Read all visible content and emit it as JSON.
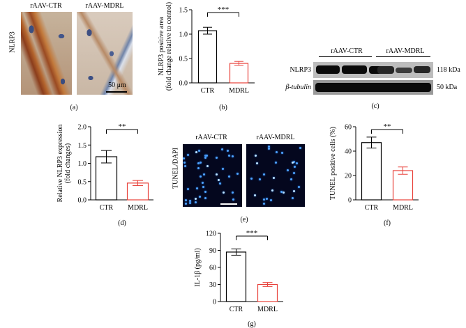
{
  "panel_a": {
    "label": "(a)",
    "row_label": "NLRP3",
    "titles": [
      "rAAV-CTR",
      "rAAV-MDRL"
    ],
    "scale": "50 μm"
  },
  "panel_c": {
    "label": "(c)",
    "groups": [
      "rAAV-CTR",
      "rAAV-MDRL"
    ],
    "rows": [
      {
        "name": "NLRP3",
        "kda": "118 kDa"
      },
      {
        "name": "β-tubulin",
        "kda": "50 kDa"
      }
    ]
  },
  "panel_e": {
    "label": "(e)",
    "row_label": "TUNEL/DAPI",
    "titles": [
      "rAAV-CTR",
      "rAAV-MDRL"
    ]
  },
  "chart_data": [
    {
      "id": "b",
      "label": "(b)",
      "type": "bar",
      "categories": [
        "CTR",
        "MDRL"
      ],
      "values": [
        1.07,
        0.4
      ],
      "errors": [
        0.07,
        0.04
      ],
      "ylabel_lines": [
        "NLRP3 positive area",
        "(fold change relative to control)"
      ],
      "ylim": [
        0,
        1.5
      ],
      "yticks": [
        0.0,
        0.5,
        1.0,
        1.5
      ],
      "ytick_labels": [
        "0.0",
        "0.5",
        "1.0",
        "1.5"
      ],
      "significance": "***",
      "colors": [
        "#000000",
        "#e8413a"
      ]
    },
    {
      "id": "d",
      "label": "(d)",
      "type": "bar",
      "categories": [
        "CTR",
        "MDRL"
      ],
      "values": [
        1.18,
        0.46
      ],
      "errors": [
        0.17,
        0.07
      ],
      "ylabel_lines": [
        "Relative NLRP3 expression",
        "(fold changes)"
      ],
      "ylim": [
        0,
        2.0
      ],
      "yticks": [
        0.0,
        0.5,
        1.0,
        1.5,
        2.0
      ],
      "ytick_labels": [
        "0.0",
        "0.5",
        "1.0",
        "1.5",
        "2.0"
      ],
      "significance": "**",
      "colors": [
        "#000000",
        "#e8413a"
      ]
    },
    {
      "id": "f",
      "label": "(f)",
      "type": "bar",
      "categories": [
        "CTR",
        "MDRL"
      ],
      "values": [
        47,
        24
      ],
      "errors": [
        4.5,
        3.0
      ],
      "ylabel_lines": [
        "TUNEL positive cells (%)"
      ],
      "ylim": [
        0,
        60
      ],
      "yticks": [
        0,
        20,
        40,
        60
      ],
      "ytick_labels": [
        "0",
        "20",
        "40",
        "60"
      ],
      "significance": "**",
      "colors": [
        "#000000",
        "#e8413a"
      ]
    },
    {
      "id": "g",
      "label": "(g)",
      "type": "bar",
      "categories": [
        "CTR",
        "MDRL"
      ],
      "values": [
        87,
        30
      ],
      "errors": [
        5.5,
        3.5
      ],
      "ylabel_lines": [
        "IL-1β (pg/ml)"
      ],
      "ylim": [
        0,
        120
      ],
      "yticks": [
        0,
        30,
        60,
        90,
        120
      ],
      "ytick_labels": [
        "0",
        "30",
        "60",
        "90",
        "120"
      ],
      "significance": "***",
      "colors": [
        "#000000",
        "#e8413a"
      ]
    }
  ]
}
